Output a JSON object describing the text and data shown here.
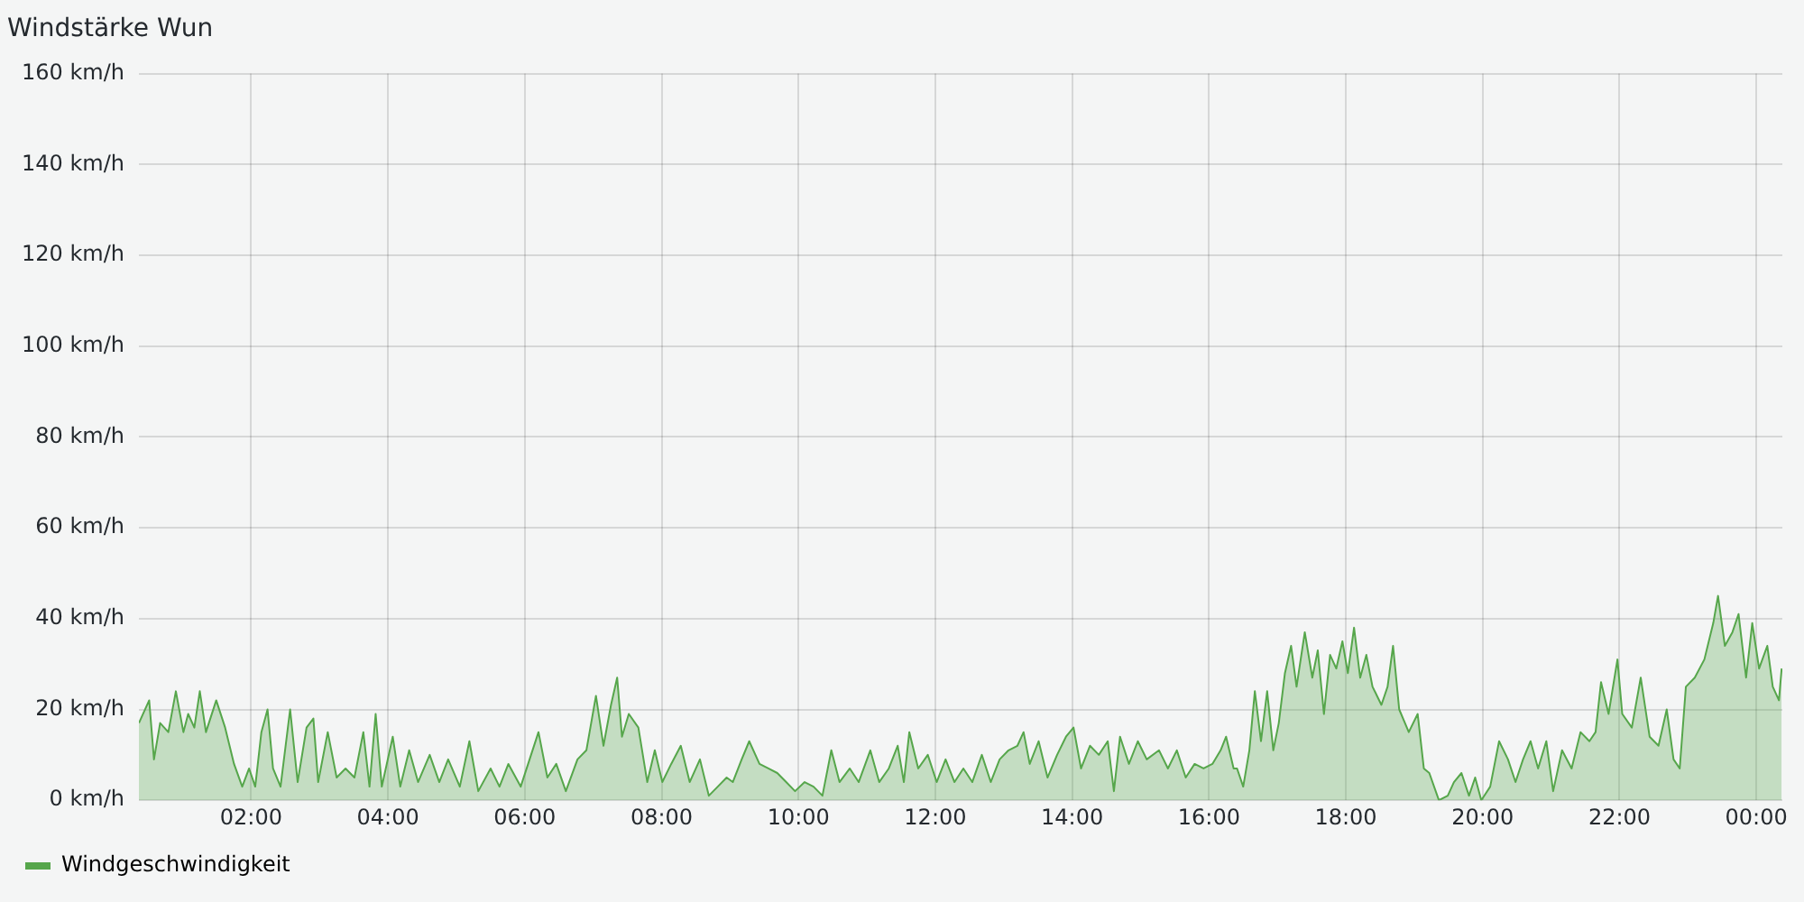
{
  "chart_data": {
    "type": "area",
    "title": "Windstärke Wun",
    "xlim": [
      0.36,
      24.38
    ],
    "xticks": [
      {
        "value": 2,
        "label": "02:00"
      },
      {
        "value": 4,
        "label": "04:00"
      },
      {
        "value": 6,
        "label": "06:00"
      },
      {
        "value": 8,
        "label": "08:00"
      },
      {
        "value": 10,
        "label": "10:00"
      },
      {
        "value": 12,
        "label": "12:00"
      },
      {
        "value": 14,
        "label": "14:00"
      },
      {
        "value": 16,
        "label": "16:00"
      },
      {
        "value": 18,
        "label": "18:00"
      },
      {
        "value": 20,
        "label": "20:00"
      },
      {
        "value": 22,
        "label": "22:00"
      },
      {
        "value": 24,
        "label": "00:00"
      }
    ],
    "ylim": [
      0,
      160
    ],
    "yticks": [
      {
        "value": 0,
        "label": "0 km/h"
      },
      {
        "value": 20,
        "label": "20 km/h"
      },
      {
        "value": 40,
        "label": "40 km/h"
      },
      {
        "value": 60,
        "label": "60 km/h"
      },
      {
        "value": 80,
        "label": "80 km/h"
      },
      {
        "value": 100,
        "label": "100 km/h"
      },
      {
        "value": 120,
        "label": "120 km/h"
      },
      {
        "value": 140,
        "label": "140 km/h"
      },
      {
        "value": 160,
        "label": "160 km/h"
      }
    ],
    "grid": true,
    "legend": "bottom left",
    "marker": "none",
    "series": [
      {
        "name": "Windgeschwindigkeit",
        "color": "#56a64b",
        "x": [
          0.36,
          0.51,
          0.58,
          0.67,
          0.79,
          0.9,
          1.01,
          1.08,
          1.17,
          1.25,
          1.34,
          1.49,
          1.62,
          1.75,
          1.87,
          1.97,
          2.06,
          2.15,
          2.24,
          2.32,
          2.43,
          2.57,
          2.68,
          2.81,
          2.91,
          2.98,
          3.12,
          3.25,
          3.38,
          3.51,
          3.64,
          3.73,
          3.82,
          3.91,
          4.07,
          4.18,
          4.31,
          4.44,
          4.61,
          4.75,
          4.88,
          5.05,
          5.19,
          5.32,
          5.5,
          5.63,
          5.76,
          5.94,
          6.07,
          6.2,
          6.33,
          6.46,
          6.6,
          6.77,
          6.9,
          7.04,
          7.15,
          7.26,
          7.35,
          7.42,
          7.52,
          7.66,
          7.79,
          7.9,
          8.01,
          8.14,
          8.28,
          8.41,
          8.56,
          8.69,
          8.82,
          8.95,
          9.04,
          9.17,
          9.28,
          9.43,
          9.56,
          9.69,
          9.82,
          9.95,
          10.09,
          10.22,
          10.35,
          10.48,
          10.6,
          10.75,
          10.88,
          11.05,
          11.18,
          11.32,
          11.45,
          11.54,
          11.62,
          11.75,
          11.89,
          12.02,
          12.15,
          12.28,
          12.41,
          12.54,
          12.68,
          12.81,
          12.94,
          13.07,
          13.2,
          13.29,
          13.38,
          13.51,
          13.64,
          13.78,
          13.91,
          14.02,
          14.13,
          14.26,
          14.39,
          14.52,
          14.61,
          14.7,
          14.83,
          14.96,
          15.09,
          15.27,
          15.4,
          15.53,
          15.66,
          15.79,
          15.92,
          16.05,
          16.17,
          16.25,
          16.36,
          16.41,
          16.5,
          16.59,
          16.67,
          16.76,
          16.85,
          16.94,
          17.02,
          17.11,
          17.2,
          17.28,
          17.4,
          17.51,
          17.59,
          17.68,
          17.77,
          17.86,
          17.95,
          18.03,
          18.12,
          18.21,
          18.3,
          18.39,
          18.52,
          18.61,
          18.69,
          18.78,
          18.92,
          19.05,
          19.14,
          19.22,
          19.36,
          19.49,
          19.58,
          19.69,
          19.8,
          19.89,
          19.98,
          20.11,
          20.24,
          20.37,
          20.48,
          20.59,
          20.7,
          20.81,
          20.93,
          21.03,
          21.16,
          21.3,
          21.43,
          21.56,
          21.65,
          21.73,
          21.84,
          21.97,
          22.04,
          22.18,
          22.31,
          22.44,
          22.57,
          22.69,
          22.79,
          22.88,
          22.97,
          23.1,
          23.24,
          23.37,
          23.44,
          23.54,
          23.65,
          23.74,
          23.85,
          23.94,
          24.04,
          24.16,
          24.24,
          24.33,
          24.37
        ],
        "values": [
          17,
          22,
          9,
          17,
          15,
          24,
          15,
          19,
          16,
          24,
          15,
          22,
          16,
          8,
          3,
          7,
          3,
          15,
          20,
          7,
          3,
          20,
          4,
          16,
          18,
          4,
          15,
          5,
          7,
          5,
          15,
          3,
          19,
          3,
          14,
          3,
          11,
          4,
          10,
          4,
          9,
          3,
          13,
          2,
          7,
          3,
          8,
          3,
          9,
          15,
          5,
          8,
          2,
          9,
          11,
          23,
          12,
          21,
          27,
          14,
          19,
          16,
          4,
          11,
          4,
          8,
          12,
          4,
          9,
          1,
          3,
          5,
          4,
          9,
          13,
          8,
          7,
          6,
          4,
          2,
          4,
          3,
          1,
          11,
          4,
          7,
          4,
          11,
          4,
          7,
          12,
          4,
          15,
          7,
          10,
          4,
          9,
          4,
          7,
          4,
          10,
          4,
          9,
          11,
          12,
          15,
          8,
          13,
          5,
          10,
          14,
          16,
          7,
          12,
          10,
          13,
          2,
          14,
          8,
          13,
          9,
          11,
          7,
          11,
          5,
          8,
          7,
          8,
          11,
          14,
          7,
          7,
          3,
          11,
          24,
          13,
          24,
          11,
          17,
          28,
          34,
          25,
          37,
          27,
          33,
          19,
          32,
          29,
          35,
          28,
          38,
          27,
          32,
          25,
          21,
          25,
          34,
          20,
          15,
          19,
          7,
          6,
          0,
          1,
          4,
          6,
          1,
          5,
          0,
          3,
          13,
          9,
          4,
          9,
          13,
          7,
          13,
          2,
          11,
          7,
          15,
          13,
          15,
          26,
          19,
          31,
          19,
          16,
          27,
          14,
          12,
          20,
          9,
          7,
          25,
          27,
          31,
          39,
          45,
          34,
          37,
          41,
          27,
          39,
          29,
          34,
          25,
          22,
          29
        ]
      }
    ]
  }
}
